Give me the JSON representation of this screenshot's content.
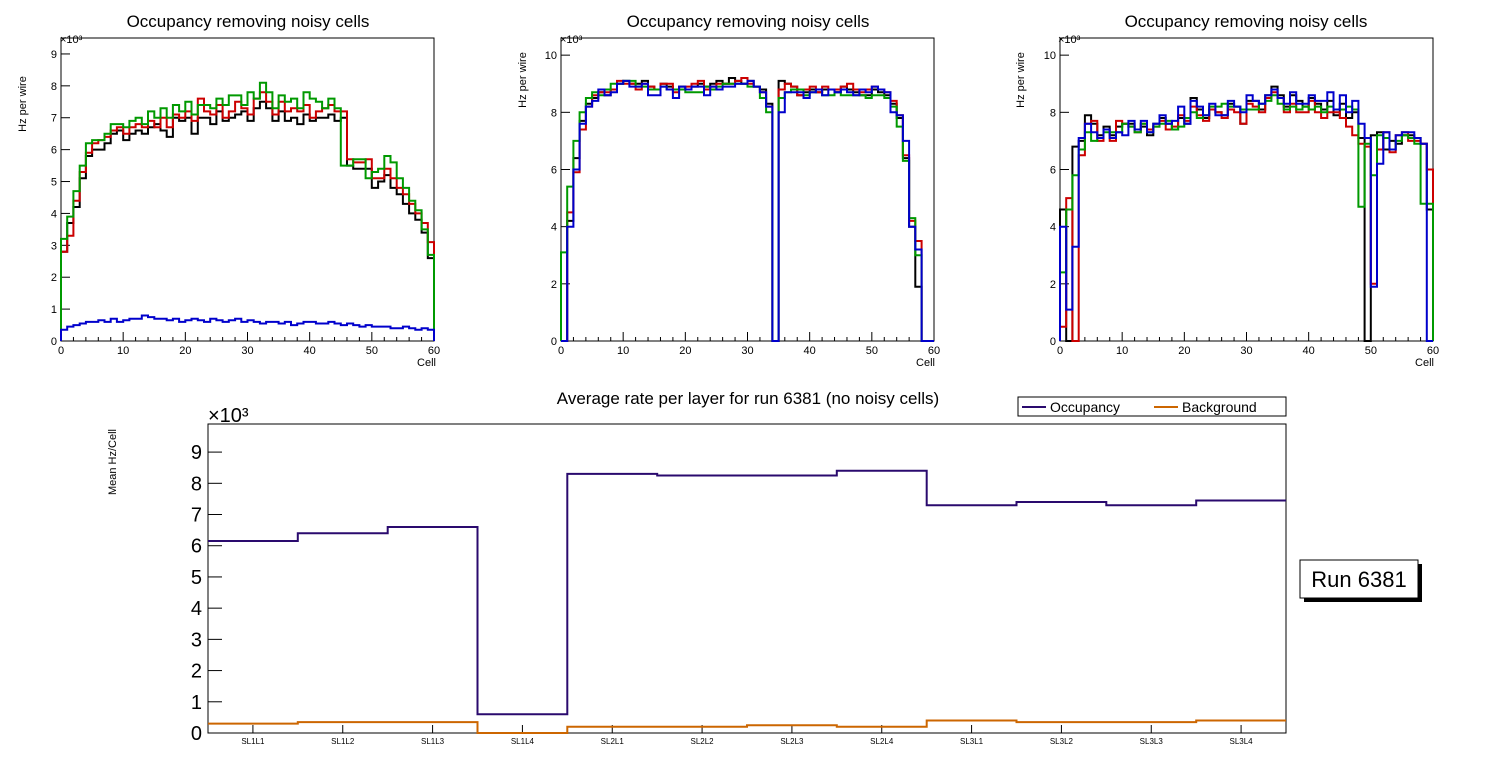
{
  "colors": {
    "black": "#000000",
    "red": "#cc0000",
    "green": "#009900",
    "blue": "#0000cc",
    "occupancy": "#2a0a6e",
    "background": "#cc6600"
  },
  "chart_data": [
    {
      "type": "histogram-step",
      "title": "Occupancy removing noisy cells",
      "xlabel": "Cell",
      "ylabel": "Hz per wire",
      "y_exponent": "×10³",
      "xlim": [
        0,
        60
      ],
      "ylim": [
        0,
        9.5
      ],
      "xticks": [
        0,
        10,
        20,
        30,
        40,
        50,
        60
      ],
      "yticks": [
        0,
        1,
        2,
        3,
        4,
        5,
        6,
        7,
        8,
        9
      ],
      "series": [
        {
          "name": "black",
          "color": "black",
          "values": [
            2.8,
            3.7,
            4.2,
            5.1,
            5.8,
            6.0,
            6.0,
            6.2,
            6.5,
            6.6,
            6.3,
            6.5,
            6.6,
            6.5,
            6.7,
            6.8,
            6.6,
            6.4,
            7.0,
            6.9,
            7.0,
            6.5,
            7.0,
            7.0,
            6.8,
            7.2,
            6.9,
            7.0,
            7.1,
            7.2,
            6.9,
            7.3,
            7.5,
            7.3,
            6.9,
            7.2,
            6.9,
            7.0,
            6.8,
            7.1,
            6.9,
            7.0,
            7.0,
            7.1,
            6.9,
            7.0,
            5.5,
            5.4,
            5.4,
            5.4,
            4.8,
            5.0,
            5.2,
            4.8,
            4.6,
            4.3,
            4.0,
            3.8,
            3.4,
            2.6
          ]
        },
        {
          "name": "red",
          "color": "red",
          "values": [
            2.8,
            3.3,
            4.4,
            5.3,
            5.9,
            6.2,
            6.3,
            6.4,
            6.6,
            6.7,
            6.5,
            6.7,
            6.8,
            6.7,
            6.9,
            6.7,
            7.0,
            6.7,
            7.1,
            7.0,
            7.2,
            6.9,
            7.6,
            7.2,
            7.1,
            7.4,
            7.0,
            7.2,
            7.5,
            7.3,
            7.1,
            7.6,
            7.8,
            7.5,
            7.1,
            7.5,
            7.2,
            7.3,
            7.2,
            7.4,
            7.0,
            7.2,
            7.3,
            7.4,
            7.2,
            7.2,
            5.7,
            5.6,
            5.6,
            5.7,
            5.1,
            5.1,
            5.4,
            5.1,
            4.8,
            4.6,
            4.3,
            4.0,
            3.7,
            3.1
          ]
        },
        {
          "name": "green",
          "color": "green",
          "values": [
            3.2,
            3.9,
            4.7,
            5.5,
            6.2,
            6.3,
            6.3,
            6.5,
            6.8,
            6.8,
            6.7,
            6.9,
            7.0,
            6.8,
            7.2,
            7.0,
            7.3,
            7.0,
            7.4,
            7.2,
            7.5,
            7.1,
            7.4,
            7.4,
            7.3,
            7.6,
            7.4,
            7.7,
            7.7,
            7.4,
            7.8,
            7.6,
            8.1,
            7.8,
            7.3,
            7.7,
            7.5,
            7.6,
            7.3,
            7.8,
            7.6,
            7.5,
            7.3,
            7.6,
            7.3,
            5.5,
            5.5,
            5.7,
            5.7,
            5.1,
            5.3,
            5.4,
            5.8,
            5.6,
            5.1,
            4.8,
            4.4,
            4.1,
            3.5,
            2.7
          ]
        },
        {
          "name": "blue",
          "color": "blue",
          "values": [
            0.35,
            0.45,
            0.5,
            0.55,
            0.6,
            0.6,
            0.65,
            0.6,
            0.7,
            0.6,
            0.65,
            0.7,
            0.7,
            0.8,
            0.75,
            0.7,
            0.7,
            0.65,
            0.7,
            0.6,
            0.65,
            0.7,
            0.65,
            0.6,
            0.7,
            0.65,
            0.6,
            0.65,
            0.7,
            0.6,
            0.65,
            0.6,
            0.55,
            0.6,
            0.6,
            0.55,
            0.6,
            0.5,
            0.55,
            0.6,
            0.6,
            0.55,
            0.55,
            0.6,
            0.55,
            0.5,
            0.55,
            0.5,
            0.45,
            0.5,
            0.45,
            0.45,
            0.45,
            0.4,
            0.4,
            0.45,
            0.4,
            0.35,
            0.4,
            0.35
          ]
        }
      ]
    },
    {
      "type": "histogram-step",
      "title": "Occupancy removing noisy cells",
      "xlabel": "Cell",
      "ylabel": "Hz per wire",
      "y_exponent": "×10³",
      "xlim": [
        0,
        60
      ],
      "ylim": [
        0,
        10.6
      ],
      "xticks": [
        0,
        10,
        20,
        30,
        40,
        50,
        60
      ],
      "yticks": [
        0,
        2,
        4,
        6,
        8,
        10
      ],
      "series": [
        {
          "name": "black",
          "color": "black",
          "values": [
            0,
            4.2,
            6.4,
            7.7,
            8.3,
            8.5,
            8.7,
            8.6,
            8.8,
            9.0,
            9.1,
            9.0,
            9.0,
            9.1,
            8.9,
            8.8,
            9.0,
            8.9,
            8.8,
            8.9,
            8.8,
            8.9,
            9.0,
            8.9,
            9.0,
            9.1,
            9.0,
            9.2,
            9.1,
            9.0,
            9.1,
            8.9,
            8.8,
            8.3,
            0,
            9.1,
            9.0,
            8.9,
            8.6,
            8.7,
            8.8,
            8.7,
            8.8,
            8.8,
            8.7,
            8.9,
            8.8,
            8.7,
            8.6,
            8.6,
            8.8,
            8.7,
            8.6,
            8.3,
            7.8,
            6.4,
            4.0,
            1.9,
            0,
            0
          ]
        },
        {
          "name": "red",
          "color": "red",
          "values": [
            0,
            4.5,
            5.9,
            7.4,
            8.2,
            8.6,
            8.7,
            8.7,
            8.8,
            9.1,
            9.0,
            9.0,
            8.8,
            9.0,
            8.9,
            8.8,
            9.0,
            9.0,
            8.7,
            8.8,
            8.9,
            9.0,
            9.1,
            8.8,
            8.9,
            9.0,
            9.0,
            9.0,
            9.1,
            9.2,
            9.0,
            8.9,
            8.7,
            8.2,
            0,
            8.8,
            9.0,
            8.9,
            8.6,
            8.8,
            8.9,
            8.7,
            8.9,
            8.8,
            8.8,
            8.9,
            9.0,
            8.8,
            8.7,
            8.8,
            8.9,
            8.8,
            8.7,
            8.4,
            7.9,
            6.5,
            4.2,
            3.5,
            0,
            0
          ]
        },
        {
          "name": "green",
          "color": "green",
          "values": [
            3.1,
            5.4,
            7.0,
            8.0,
            8.5,
            8.7,
            8.6,
            8.8,
            9.0,
            9.0,
            9.1,
            9.1,
            8.9,
            8.9,
            8.8,
            8.8,
            8.9,
            8.8,
            8.8,
            8.8,
            8.7,
            8.7,
            8.7,
            8.9,
            8.8,
            8.9,
            9.0,
            9.0,
            9.0,
            9.0,
            8.9,
            8.9,
            8.5,
            8.0,
            0,
            8.5,
            8.7,
            8.8,
            8.8,
            8.6,
            8.7,
            8.8,
            8.6,
            8.6,
            8.7,
            8.6,
            8.6,
            8.6,
            8.6,
            8.5,
            8.6,
            8.6,
            8.5,
            8.2,
            7.5,
            6.3,
            4.3,
            3.0,
            0,
            0
          ]
        },
        {
          "name": "blue",
          "color": "blue",
          "values": [
            0,
            4.0,
            6.0,
            7.6,
            8.2,
            8.4,
            8.8,
            8.6,
            8.7,
            9.0,
            9.1,
            8.9,
            8.9,
            9.0,
            8.6,
            8.6,
            8.9,
            8.8,
            8.5,
            8.9,
            8.8,
            8.9,
            8.9,
            8.6,
            8.9,
            8.8,
            8.9,
            8.9,
            9.0,
            9.0,
            9.1,
            8.9,
            8.7,
            8.2,
            0,
            8.0,
            8.7,
            8.7,
            8.7,
            8.5,
            8.7,
            8.8,
            8.6,
            8.8,
            8.7,
            8.8,
            8.7,
            8.6,
            8.8,
            8.7,
            8.9,
            8.8,
            8.7,
            8.0,
            7.9,
            7.0,
            4.0,
            3.2,
            0,
            0
          ]
        }
      ]
    },
    {
      "type": "histogram-step",
      "title": "Occupancy removing noisy cells",
      "xlabel": "Cell",
      "ylabel": "Hz per wire",
      "y_exponent": "×10³",
      "xlim": [
        0,
        60
      ],
      "ylim": [
        0,
        10.6
      ],
      "xticks": [
        0,
        10,
        20,
        30,
        40,
        50,
        60
      ],
      "yticks": [
        0,
        2,
        4,
        6,
        8,
        10
      ],
      "series": [
        {
          "name": "black",
          "color": "black",
          "values": [
            4.6,
            0,
            6.8,
            7.0,
            7.9,
            7.6,
            7.2,
            7.5,
            7.2,
            7.5,
            7.6,
            7.6,
            7.4,
            7.5,
            7.2,
            7.6,
            7.8,
            7.6,
            7.4,
            7.8,
            7.6,
            8.5,
            8.1,
            7.8,
            8.1,
            8.0,
            7.9,
            8.3,
            8.2,
            7.6,
            8.4,
            8.4,
            8.1,
            8.6,
            8.9,
            8.6,
            8.2,
            8.6,
            8.4,
            8.2,
            8.5,
            8.3,
            8.1,
            8.4,
            7.9,
            8.3,
            7.8,
            8.0,
            7.1,
            0,
            7.2,
            7.3,
            6.7,
            7.0,
            6.9,
            7.2,
            7.2,
            7.1,
            6.9,
            4.6
          ]
        },
        {
          "name": "red",
          "color": "red",
          "values": [
            0.5,
            5.0,
            0,
            6.5,
            7.6,
            7.7,
            7.0,
            7.4,
            7.0,
            7.7,
            7.6,
            7.5,
            7.3,
            7.6,
            7.4,
            7.5,
            7.7,
            7.4,
            7.5,
            7.9,
            7.7,
            8.2,
            7.9,
            7.7,
            8.1,
            8.0,
            7.8,
            8.1,
            8.0,
            7.6,
            8.3,
            8.2,
            8.0,
            8.5,
            8.7,
            8.5,
            8.0,
            8.3,
            8.0,
            8.0,
            8.4,
            8.0,
            7.8,
            8.0,
            8.0,
            7.8,
            7.5,
            7.2,
            6.9,
            6.8,
            2.0,
            6.7,
            7.3,
            6.6,
            7.2,
            7.3,
            7.0,
            7.0,
            6.9,
            6.0
          ]
        },
        {
          "name": "green",
          "color": "green",
          "values": [
            2.4,
            4.6,
            5.8,
            6.7,
            7.3,
            7.0,
            7.1,
            7.3,
            7.3,
            7.3,
            7.6,
            7.5,
            7.3,
            7.6,
            7.3,
            7.5,
            7.6,
            7.7,
            7.4,
            7.5,
            7.8,
            8.0,
            7.8,
            7.9,
            8.2,
            8.2,
            8.3,
            8.2,
            8.2,
            8.1,
            8.1,
            8.1,
            8.3,
            8.4,
            8.6,
            8.3,
            8.1,
            8.2,
            8.1,
            8.2,
            8.1,
            8.2,
            8.0,
            8.2,
            8.1,
            8.1,
            8.2,
            8.1,
            4.7,
            6.9,
            5.8,
            7.2,
            7.1,
            6.7,
            7.0,
            7.2,
            7.1,
            6.9,
            4.8,
            4.8
          ]
        },
        {
          "name": "blue",
          "color": "blue",
          "values": [
            4.0,
            1.1,
            3.3,
            7.1,
            7.6,
            7.3,
            7.1,
            7.4,
            7.1,
            7.3,
            7.2,
            7.7,
            7.4,
            7.7,
            7.3,
            7.6,
            7.9,
            7.6,
            7.7,
            8.2,
            7.6,
            8.4,
            8.2,
            7.9,
            8.3,
            7.9,
            7.9,
            8.4,
            8.2,
            8.0,
            8.6,
            8.4,
            8.3,
            8.6,
            8.8,
            8.5,
            8.3,
            8.7,
            8.3,
            8.3,
            8.6,
            8.4,
            8.4,
            8.7,
            8.1,
            8.6,
            8.0,
            8.4,
            7.6,
            7.1,
            1.9,
            6.2,
            7.3,
            6.7,
            7.2,
            7.3,
            7.3,
            7.1,
            6.9,
            0
          ]
        }
      ]
    },
    {
      "type": "histogram-step",
      "title": "Average rate per layer for run 6381 (no noisy cells)",
      "xlabel": "",
      "ylabel": "Mean Hz/Cell",
      "y_exponent": "×10³",
      "ylim": [
        0,
        9.9
      ],
      "yticks": [
        0,
        1,
        2,
        3,
        4,
        5,
        6,
        7,
        8,
        9
      ],
      "categories": [
        "SL1L1",
        "SL1L2",
        "SL1L3",
        "SL1L4",
        "SL2L1",
        "SL2L2",
        "SL2L3",
        "SL2L4",
        "SL3L1",
        "SL3L2",
        "SL3L3",
        "SL3L4"
      ],
      "series": [
        {
          "name": "Occupancy",
          "color": "occupancy",
          "values": [
            6.15,
            6.4,
            6.6,
            0.6,
            8.3,
            8.25,
            8.25,
            8.4,
            7.3,
            7.4,
            7.3,
            7.45
          ]
        },
        {
          "name": "Background",
          "color": "background",
          "values": [
            0.3,
            0.35,
            0.35,
            0.0,
            0.2,
            0.2,
            0.25,
            0.2,
            0.4,
            0.35,
            0.35,
            0.4
          ]
        }
      ],
      "legend": {
        "placement": "top-right",
        "entries": [
          "Occupancy",
          "Background"
        ]
      },
      "annotation": "Run 6381"
    }
  ]
}
